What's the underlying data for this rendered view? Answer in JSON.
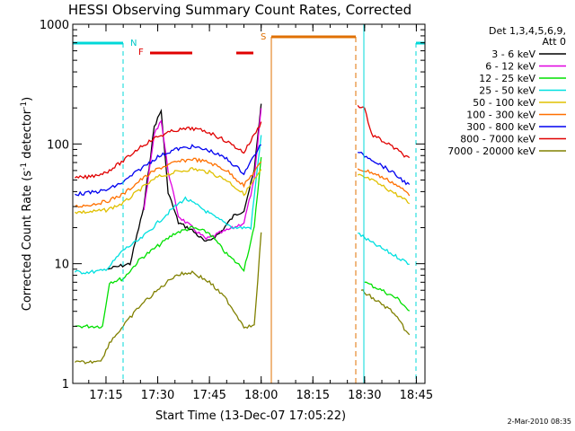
{
  "chart_data": {
    "type": "line",
    "title": "HESSI Observing Summary Count Rates, Corrected",
    "xlabel": "Start Time (13-Dec-07 17:05:22)",
    "ylabel": "Corrected Count Rate (s",
    "ylabel_exp": "-1",
    "ylabel_mid": " detector",
    "ylabel_end": ")",
    "yscale": "log",
    "xlim": [
      "17:05:22",
      "18:47:30"
    ],
    "ylim": [
      1,
      1000
    ],
    "xticks": [
      "17:15",
      "17:30",
      "17:45",
      "18:00",
      "18:15",
      "18:30",
      "18:45"
    ],
    "yticks": [
      {
        "v": 1,
        "label": "1"
      },
      {
        "v": 10,
        "label": "10"
      },
      {
        "v": 100,
        "label": "100"
      },
      {
        "v": 1000,
        "label": "1000"
      }
    ],
    "legend_header": [
      "Det 1,3,4,5,6,9,",
      "Att 0"
    ],
    "timestamp": "2-Mar-2010 08:35",
    "annotations": {
      "night": "N",
      "flare": "F",
      "saa": "S"
    },
    "series": [
      {
        "name": "3 - 6 keV",
        "color": "#000000",
        "points": [
          [
            "17:15:30",
            9
          ],
          [
            "17:22",
            10
          ],
          [
            "17:26",
            30
          ],
          [
            "17:29",
            140
          ],
          [
            "17:31",
            190
          ],
          [
            "17:33",
            40
          ],
          [
            "17:36",
            22
          ],
          [
            "17:40",
            19
          ],
          [
            "17:44",
            15
          ],
          [
            "17:48",
            18
          ],
          [
            "17:52",
            25
          ],
          [
            "17:55",
            28
          ],
          [
            "17:58",
            60
          ],
          [
            "18:00",
            220
          ]
        ]
      },
      {
        "name": "6 - 12 keV",
        "color": "#e000e0",
        "points": [
          [
            "17:26",
            28
          ],
          [
            "17:29",
            120
          ],
          [
            "17:31",
            160
          ],
          [
            "17:33",
            60
          ],
          [
            "17:36",
            25
          ],
          [
            "17:40",
            20
          ],
          [
            "17:44",
            16
          ],
          [
            "17:48",
            18
          ],
          [
            "17:52",
            20
          ],
          [
            "17:55",
            22
          ],
          [
            "17:58",
            50
          ],
          [
            "18:00",
            200
          ]
        ]
      },
      {
        "name": "12 - 25 keV",
        "color": "#00e000",
        "points": [
          [
            "17:06",
            3
          ],
          [
            "17:10",
            3
          ],
          [
            "17:14",
            3
          ],
          [
            "17:16",
            7
          ],
          [
            "17:20",
            7.5
          ],
          [
            "17:25",
            11
          ],
          [
            "17:30",
            14
          ],
          [
            "17:35",
            18
          ],
          [
            "17:40",
            20
          ],
          [
            "17:45",
            18
          ],
          [
            "17:50",
            12
          ],
          [
            "17:55",
            9
          ],
          [
            "17:58",
            20
          ],
          [
            "18:00",
            80
          ],
          [
            "18:30",
            7
          ],
          [
            "18:35",
            6
          ],
          [
            "18:40",
            5
          ],
          [
            "18:43",
            4
          ]
        ]
      },
      {
        "name": "25 - 50 keV",
        "color": "#00e0e0",
        "points": [
          [
            "17:06",
            8.5
          ],
          [
            "17:10",
            8.5
          ],
          [
            "17:14",
            8.7
          ],
          [
            "17:16",
            9.5
          ],
          [
            "17:20",
            13
          ],
          [
            "17:25",
            16
          ],
          [
            "17:30",
            22
          ],
          [
            "17:35",
            30
          ],
          [
            "17:38",
            35
          ],
          [
            "17:42",
            30
          ],
          [
            "17:47",
            24
          ],
          [
            "17:52",
            20
          ],
          [
            "17:57",
            20
          ],
          [
            "18:00",
            120
          ],
          [
            "18:28",
            18
          ],
          [
            "18:32",
            15
          ],
          [
            "18:38",
            12
          ],
          [
            "18:43",
            10
          ]
        ]
      },
      {
        "name": "50 - 100 keV",
        "color": "#e0c000",
        "points": [
          [
            "17:06",
            27
          ],
          [
            "17:10",
            27
          ],
          [
            "17:15",
            28
          ],
          [
            "17:20",
            32
          ],
          [
            "17:25",
            42
          ],
          [
            "17:30",
            53
          ],
          [
            "17:35",
            58
          ],
          [
            "17:40",
            62
          ],
          [
            "17:45",
            58
          ],
          [
            "17:50",
            50
          ],
          [
            "17:55",
            38
          ],
          [
            "18:00",
            60
          ],
          [
            "18:28",
            55
          ],
          [
            "18:32",
            50
          ],
          [
            "18:38",
            40
          ],
          [
            "18:43",
            32
          ]
        ]
      },
      {
        "name": "100 - 300 keV",
        "color": "#ff7000",
        "points": [
          [
            "17:06",
            30
          ],
          [
            "17:10",
            31
          ],
          [
            "17:15",
            33
          ],
          [
            "17:20",
            38
          ],
          [
            "17:25",
            50
          ],
          [
            "17:30",
            62
          ],
          [
            "17:35",
            70
          ],
          [
            "17:40",
            75
          ],
          [
            "17:45",
            70
          ],
          [
            "17:50",
            60
          ],
          [
            "17:55",
            45
          ],
          [
            "18:00",
            70
          ],
          [
            "18:28",
            62
          ],
          [
            "18:32",
            58
          ],
          [
            "18:38",
            48
          ],
          [
            "18:43",
            38
          ]
        ]
      },
      {
        "name": "300 - 800 keV",
        "color": "#0000f0",
        "points": [
          [
            "17:06",
            38
          ],
          [
            "17:10",
            39
          ],
          [
            "17:15",
            41
          ],
          [
            "17:20",
            48
          ],
          [
            "17:25",
            62
          ],
          [
            "17:30",
            78
          ],
          [
            "17:35",
            90
          ],
          [
            "17:40",
            95
          ],
          [
            "17:45",
            88
          ],
          [
            "17:50",
            75
          ],
          [
            "17:55",
            57
          ],
          [
            "18:00",
            100
          ],
          [
            "18:28",
            85
          ],
          [
            "18:32",
            75
          ],
          [
            "18:38",
            58
          ],
          [
            "18:43",
            45
          ]
        ]
      },
      {
        "name": "800 - 7000 keV",
        "color": "#e00000",
        "points": [
          [
            "17:06",
            52
          ],
          [
            "17:10",
            53
          ],
          [
            "17:15",
            58
          ],
          [
            "17:20",
            72
          ],
          [
            "17:25",
            95
          ],
          [
            "17:30",
            115
          ],
          [
            "17:35",
            130
          ],
          [
            "17:40",
            135
          ],
          [
            "17:45",
            125
          ],
          [
            "17:50",
            105
          ],
          [
            "17:55",
            85
          ],
          [
            "18:00",
            150
          ],
          [
            "18:28",
            210
          ],
          [
            "18:30",
            200
          ],
          [
            "18:32",
            120
          ],
          [
            "18:38",
            95
          ],
          [
            "18:43",
            75
          ]
        ]
      },
      {
        "name": "7000 - 20000 keV",
        "color": "#808000",
        "points": [
          [
            "17:06",
            1.5
          ],
          [
            "17:10",
            1.5
          ],
          [
            "17:14",
            1.6
          ],
          [
            "17:16",
            2.2
          ],
          [
            "17:20",
            3
          ],
          [
            "17:25",
            4.5
          ],
          [
            "17:30",
            6
          ],
          [
            "17:35",
            8
          ],
          [
            "17:40",
            8.5
          ],
          [
            "17:45",
            7
          ],
          [
            "17:50",
            5
          ],
          [
            "17:55",
            3
          ],
          [
            "17:58",
            3
          ],
          [
            "18:00",
            18
          ],
          [
            "18:29",
            6
          ],
          [
            "18:33",
            5
          ],
          [
            "18:38",
            4
          ],
          [
            "18:43",
            2.5
          ]
        ]
      }
    ]
  }
}
